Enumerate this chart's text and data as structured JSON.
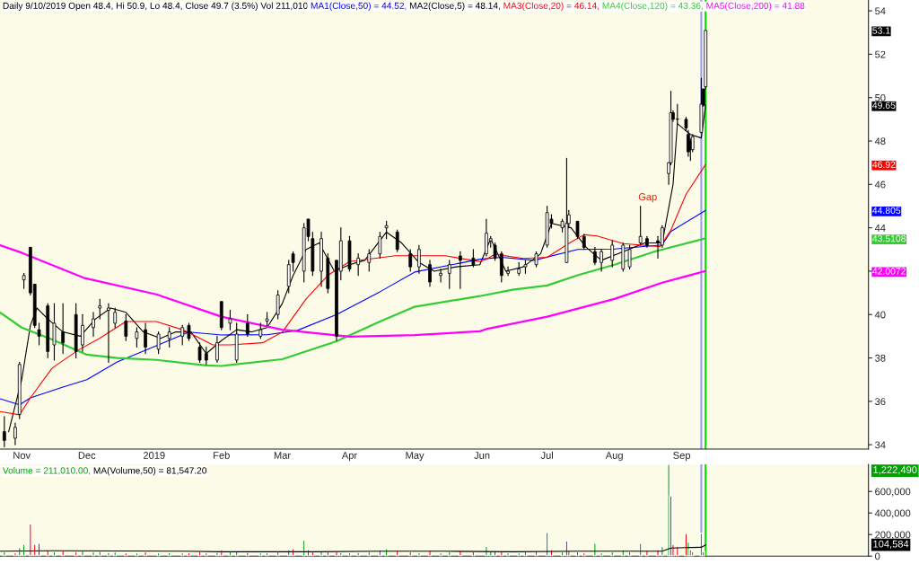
{
  "chart_data": [
    {
      "type": "candlestick",
      "title": "Daily 9/10/2019 Open 48.4, Hi 50.9, Lo 48.4, Close 49.7 (3.5%) Vol 211,010",
      "x": [
        "2018-10-24",
        "2018-10-29",
        "2018-10-31",
        "2018-11-02",
        "2018-11-05",
        "2018-11-07",
        "2018-11-09",
        "2018-11-13",
        "2018-11-16",
        "2018-11-20",
        "2018-11-26",
        "2018-11-29",
        "2018-12-04",
        "2018-12-07",
        "2018-12-11",
        "2018-12-14",
        "2018-12-19",
        "2018-12-24",
        "2018-12-28",
        "2019-01-03",
        "2019-01-08",
        "2019-01-14",
        "2019-01-17",
        "2019-01-22",
        "2019-01-25",
        "2019-01-30",
        "2019-02-01",
        "2019-02-05",
        "2019-02-08",
        "2019-02-13",
        "2019-02-19",
        "2019-02-22",
        "2019-02-27",
        "2019-03-04",
        "2019-03-06",
        "2019-03-11",
        "2019-03-13",
        "2019-03-15",
        "2019-03-19",
        "2019-03-22",
        "2019-03-26",
        "2019-03-28",
        "2019-04-01",
        "2019-04-05",
        "2019-04-10",
        "2019-04-15",
        "2019-04-18",
        "2019-04-23",
        "2019-04-29",
        "2019-05-03",
        "2019-05-08",
        "2019-05-13",
        "2019-05-17",
        "2019-05-22",
        "2019-05-28",
        "2019-06-03",
        "2019-06-05",
        "2019-06-07",
        "2019-06-10",
        "2019-06-13",
        "2019-06-18",
        "2019-06-21",
        "2019-06-26",
        "2019-07-01",
        "2019-07-03",
        "2019-07-08",
        "2019-07-10",
        "2019-07-11",
        "2019-07-15",
        "2019-07-18",
        "2019-07-23",
        "2019-07-26",
        "2019-07-31",
        "2019-08-05",
        "2019-08-08",
        "2019-08-13",
        "2019-08-16",
        "2019-08-21",
        "2019-08-23",
        "2019-08-26",
        "2019-08-27",
        "2019-08-28",
        "2019-08-30",
        "2019-09-03",
        "2019-09-04",
        "2019-09-05",
        "2019-09-06",
        "2019-09-10",
        "2019-09-11",
        "2019-09-12"
      ],
      "ohlc": [
        [
          34.6,
          35.3,
          33.9,
          34.2
        ],
        [
          34.3,
          35.0,
          34.0,
          34.8
        ],
        [
          35.4,
          37.8,
          35.2,
          37.7
        ],
        [
          41.6,
          41.9,
          41.2,
          41.8
        ],
        [
          43.1,
          43.1,
          40.9,
          41.0
        ],
        [
          41.4,
          41.4,
          39.4,
          39.5
        ],
        [
          39.3,
          39.6,
          38.6,
          39.0
        ],
        [
          40.4,
          40.5,
          38.0,
          38.3
        ],
        [
          38.6,
          40.5,
          37.9,
          39.6
        ],
        [
          39.2,
          40.5,
          38.2,
          38.7
        ],
        [
          40.0,
          40.5,
          38.0,
          38.3
        ],
        [
          38.6,
          40.0,
          38.3,
          39.5
        ],
        [
          39.4,
          40.1,
          39.0,
          39.8
        ],
        [
          40.3,
          40.7,
          39.8,
          40.4
        ],
        [
          40.2,
          40.5,
          37.8,
          40.3
        ],
        [
          39.6,
          40.3,
          39.4,
          40.1
        ],
        [
          39.7,
          40.0,
          38.8,
          39.0
        ],
        [
          38.9,
          39.4,
          38.5,
          39.2
        ],
        [
          39.3,
          39.6,
          38.2,
          38.5
        ],
        [
          38.4,
          39.2,
          38.2,
          39.1
        ],
        [
          38.9,
          39.4,
          38.5,
          39.2
        ],
        [
          39.0,
          39.5,
          38.6,
          39.4
        ],
        [
          39.5,
          39.6,
          38.8,
          38.9
        ],
        [
          38.5,
          38.7,
          37.8,
          37.9
        ],
        [
          38.2,
          38.5,
          37.7,
          37.9
        ],
        [
          37.9,
          39.0,
          37.8,
          38.7
        ],
        [
          40.6,
          40.6,
          39.3,
          39.4
        ],
        [
          39.6,
          40.2,
          39.3,
          39.8
        ],
        [
          37.9,
          39.6,
          37.8,
          39.1
        ],
        [
          39.6,
          40.0,
          39.0,
          39.1
        ],
        [
          39.0,
          39.6,
          38.9,
          39.3
        ],
        [
          39.7,
          40.1,
          39.5,
          39.8
        ],
        [
          40.0,
          41.1,
          39.8,
          40.9
        ],
        [
          41.3,
          42.5,
          41.0,
          42.3
        ],
        [
          42.8,
          42.9,
          42.0,
          42.4
        ],
        [
          42.0,
          44.2,
          41.5,
          44.0
        ],
        [
          44.4,
          44.4,
          43.4,
          43.6
        ],
        [
          43.5,
          43.8,
          41.8,
          42.0
        ],
        [
          42.0,
          43.8,
          41.3,
          43.5
        ],
        [
          42.6,
          42.8,
          41.0,
          41.2
        ],
        [
          42.5,
          42.5,
          38.8,
          39.0
        ],
        [
          42.0,
          44.0,
          41.6,
          43.4
        ],
        [
          43.4,
          43.6,
          42.0,
          42.1
        ],
        [
          42.3,
          42.8,
          41.8,
          42.6
        ],
        [
          42.4,
          43.0,
          42.0,
          42.8
        ],
        [
          42.8,
          43.8,
          42.6,
          43.6
        ],
        [
          44.0,
          44.3,
          43.5,
          44.1
        ],
        [
          43.8,
          43.9,
          42.9,
          43.0
        ],
        [
          42.8,
          43.0,
          42.0,
          42.2
        ],
        [
          42.2,
          43.2,
          41.9,
          43.0
        ],
        [
          42.3,
          42.5,
          41.3,
          41.5
        ],
        [
          41.8,
          42.1,
          41.5,
          41.9
        ],
        [
          41.9,
          42.5,
          41.2,
          42.3
        ],
        [
          42.7,
          42.9,
          41.2,
          42.5
        ],
        [
          42.6,
          43.0,
          42.2,
          42.3
        ],
        [
          42.8,
          44.4,
          42.7,
          43.75
        ],
        [
          43.4,
          43.6,
          43.1,
          43.5
        ],
        [
          43.2,
          43.3,
          42.5,
          42.6
        ],
        [
          42.8,
          42.9,
          41.5,
          41.8
        ],
        [
          41.9,
          42.2,
          41.8,
          42.0
        ],
        [
          41.9,
          42.4,
          41.8,
          42.1
        ],
        [
          42.2,
          42.5,
          41.9,
          42.3
        ],
        [
          42.3,
          42.9,
          42.2,
          42.8
        ],
        [
          43.2,
          45.0,
          43.1,
          44.7
        ],
        [
          44.4,
          44.6,
          44.0,
          44.2
        ],
        [
          44.0,
          44.4,
          43.8,
          44.3
        ],
        [
          42.4,
          47.2,
          42.4,
          44.2
        ],
        [
          44.2,
          44.8,
          44.0,
          44.6
        ],
        [
          44.3,
          44.3,
          43.5,
          43.6
        ],
        [
          43.6,
          43.7,
          43.0,
          43.1
        ],
        [
          42.9,
          43.1,
          42.3,
          42.4
        ],
        [
          42.4,
          43.0,
          42.0,
          42.9
        ],
        [
          42.5,
          43.4,
          42.2,
          43.2
        ],
        [
          42.1,
          43.3,
          42.0,
          43.2
        ],
        [
          42.2,
          43.2,
          42.1,
          43.0
        ],
        [
          43.3,
          45.0,
          43.2,
          43.6
        ],
        [
          43.5,
          43.6,
          43.1,
          43.2
        ],
        [
          43.4,
          43.6,
          42.6,
          43.3
        ],
        [
          43.2,
          44.1,
          43.1,
          44.0
        ],
        [
          46.5,
          47.0,
          46.0,
          47.0
        ],
        [
          47.0,
          50.3,
          46.9,
          49.3
        ],
        [
          49.3,
          49.4,
          48.9,
          49.0
        ],
        [
          49.0,
          49.7,
          48.8,
          49.0
        ],
        [
          49.0,
          49.1,
          48.5,
          48.6
        ],
        [
          48.3,
          48.5,
          47.3,
          47.5
        ],
        [
          48.0,
          48.1,
          47.1,
          47.6
        ],
        [
          47.6,
          48.3,
          47.5,
          48.2
        ],
        [
          48.4,
          50.9,
          48.4,
          49.7
        ],
        [
          50.4,
          50.4,
          49.6,
          49.65
        ],
        [
          50.5,
          53.1,
          50.4,
          53.1
        ]
      ],
      "series": [
        {
          "name": "MA1(Close,50) = 44.52,",
          "type": "line",
          "color": "#0000ff",
          "x": [
            "2018-10-22",
            "2018-10-31",
            "2018-11-05",
            "2018-11-20",
            "2018-12-01",
            "2018-12-15",
            "2019-01-02",
            "2019-01-17",
            "2019-02-01",
            "2019-02-22",
            "2019-03-08",
            "2019-03-26",
            "2019-04-15",
            "2019-05-01",
            "2019-05-31",
            "2019-06-10",
            "2019-06-25",
            "2019-07-15",
            "2019-08-01",
            "2019-08-23",
            "2019-08-27",
            "2019-09-12"
          ],
          "values": [
            36.12,
            35.84,
            36.16,
            36.66,
            37.0,
            37.82,
            38.56,
            39.19,
            39.06,
            39.07,
            39.27,
            40.0,
            41.05,
            41.96,
            42.55,
            42.64,
            42.5,
            43.0,
            43.02,
            43.21,
            43.83,
            44.805
          ]
        },
        {
          "name": "MA2(Close,5) = 48.14,",
          "type": "line",
          "color": "#000000",
          "x": [
            "2018-10-26",
            "2018-11-01",
            "2018-11-05",
            "2018-11-08",
            "2018-11-13",
            "2018-11-20",
            "2018-11-28",
            "2018-12-05",
            "2018-12-12",
            "2018-12-19",
            "2018-12-27",
            "2019-01-04",
            "2019-01-11",
            "2019-01-18",
            "2019-01-25",
            "2019-02-01",
            "2019-02-08",
            "2019-02-15",
            "2019-02-22",
            "2019-03-01",
            "2019-03-06",
            "2019-03-12",
            "2019-03-18",
            "2019-03-25",
            "2019-04-01",
            "2019-04-08",
            "2019-04-18",
            "2019-04-25",
            "2019-05-03",
            "2019-05-10",
            "2019-05-20",
            "2019-05-31",
            "2019-06-05",
            "2019-06-12",
            "2019-06-20",
            "2019-06-28",
            "2019-07-03",
            "2019-07-12",
            "2019-07-19",
            "2019-07-26",
            "2019-08-05",
            "2019-08-15",
            "2019-08-23",
            "2019-08-28",
            "2019-08-30",
            "2019-09-05",
            "2019-09-10",
            "2019-09-12"
          ],
          "values": [
            34.6,
            37.0,
            39.5,
            40.3,
            39.8,
            39.2,
            39.0,
            39.8,
            40.3,
            40.1,
            39.2,
            38.9,
            39.2,
            39.2,
            38.2,
            38.8,
            39.3,
            39.2,
            39.4,
            40.5,
            41.8,
            43.0,
            43.3,
            42.0,
            42.3,
            42.5,
            43.8,
            43.3,
            42.4,
            42.0,
            42.2,
            42.3,
            43.5,
            42.0,
            42.2,
            42.8,
            44.2,
            44.0,
            43.1,
            42.5,
            42.9,
            43.3,
            43.3,
            46.0,
            48.8,
            48.3,
            48.14,
            49.65
          ]
        },
        {
          "name": "MA3(Close,20) = 46.14,",
          "type": "line",
          "color": "#ff0000",
          "x": [
            "2018-10-22",
            "2018-10-31",
            "2018-11-05",
            "2018-11-15",
            "2018-11-27",
            "2018-12-07",
            "2018-12-19",
            "2019-01-02",
            "2019-01-15",
            "2019-01-28",
            "2019-02-05",
            "2019-02-20",
            "2019-03-01",
            "2019-03-12",
            "2019-03-22",
            "2019-04-01",
            "2019-04-22",
            "2019-05-15",
            "2019-05-31",
            "2019-06-03",
            "2019-06-07",
            "2019-06-20",
            "2019-07-01",
            "2019-07-12",
            "2019-07-18",
            "2019-07-24",
            "2019-08-05",
            "2019-08-22",
            "2019-08-27",
            "2019-09-03",
            "2019-09-12"
          ],
          "values": [
            35.53,
            35.38,
            36.16,
            37.53,
            38.36,
            38.91,
            39.68,
            39.68,
            39.27,
            38.6,
            38.6,
            38.7,
            39.19,
            40.72,
            41.81,
            42.44,
            42.71,
            42.71,
            42.44,
            42.55,
            42.78,
            42.59,
            42.64,
            43.34,
            43.68,
            43.62,
            43.27,
            43.13,
            43.89,
            45.55,
            46.92
          ]
        },
        {
          "name": "MA4(Close,120) = 43.36,",
          "type": "line",
          "color": "#33cc33",
          "x": [
            "2018-10-22",
            "2018-11-01",
            "2018-11-15",
            "2018-12-01",
            "2018-12-15",
            "2019-01-02",
            "2019-01-25",
            "2019-02-01",
            "2019-03-01",
            "2019-03-26",
            "2019-04-15",
            "2019-05-01",
            "2019-05-31",
            "2019-06-15",
            "2019-07-01",
            "2019-07-15",
            "2019-08-01",
            "2019-08-20",
            "2019-09-12"
          ],
          "values": [
            40.1,
            39.4,
            38.85,
            38.15,
            38.0,
            37.91,
            37.66,
            37.63,
            37.94,
            38.77,
            39.68,
            40.36,
            40.85,
            41.14,
            41.34,
            41.81,
            42.3,
            42.92,
            43.5108
          ]
        },
        {
          "name": "MA5(Close,200) = 41.88",
          "type": "line",
          "color": "#ff00ff",
          "x": [
            "2018-10-22",
            "2018-11-01",
            "2018-11-30",
            "2019-01-02",
            "2019-02-01",
            "2019-03-01",
            "2019-04-01",
            "2019-05-01",
            "2019-05-31",
            "2019-06-03",
            "2019-07-01",
            "2019-08-01",
            "2019-08-23",
            "2019-09-12"
          ],
          "values": [
            43.2,
            42.85,
            41.68,
            40.93,
            39.9,
            39.3,
            38.98,
            39.05,
            39.23,
            39.33,
            39.9,
            40.72,
            41.47,
            42.0072
          ]
        }
      ],
      "annotations": [
        "Gap"
      ],
      "y2lim": [
        33.8,
        54.5
      ],
      "y2ticks": [
        53.1,
        49.65,
        46.92,
        44.805,
        43.5108,
        42.0072
      ],
      "ref_lines": [
        {
          "axis": "x",
          "value": "2019-09-10",
          "color": "#9999ff"
        },
        {
          "axis": "x",
          "value": "2019-09-12",
          "color": "#00dd00"
        }
      ],
      "xlim": [
        "2018-10-22",
        "2019-11-26"
      ],
      "xticks": [
        {
          "value": "2018-11-01",
          "label": "Nov"
        },
        {
          "value": "2018-12-01",
          "label": "Dec"
        },
        {
          "value": "2019-01-01",
          "label": "2019"
        },
        {
          "value": "2019-02-01",
          "label": "Feb"
        },
        {
          "value": "2019-03-01",
          "label": "Mar"
        },
        {
          "value": "2019-04-01",
          "label": "Apr"
        },
        {
          "value": "2019-05-01",
          "label": "May"
        },
        {
          "value": "2019-06-01",
          "label": "Jun"
        },
        {
          "value": "2019-07-01",
          "label": "Jul"
        },
        {
          "value": "2019-08-01",
          "label": "Aug"
        },
        {
          "value": "2019-09-01",
          "label": "Sep"
        }
      ],
      "ylim": [
        33.8,
        54.5
      ],
      "yticks": [
        34,
        36,
        38,
        40,
        {
          "value": 42,
          "label": null
        },
        44,
        46,
        48,
        50,
        52,
        54
      ],
      "grid": false,
      "legend": "top right"
    },
    {
      "type": "bar",
      "x": [
        "2018-10-24",
        "2018-10-29",
        "2018-10-31",
        "2018-11-02",
        "2018-11-05",
        "2018-11-07",
        "2018-11-09",
        "2018-11-13",
        "2018-11-16",
        "2018-11-20",
        "2018-11-26",
        "2018-11-29",
        "2018-12-04",
        "2018-12-07",
        "2018-12-11",
        "2018-12-14",
        "2018-12-19",
        "2018-12-24",
        "2018-12-28",
        "2019-01-03",
        "2019-01-08",
        "2019-01-14",
        "2019-01-17",
        "2019-01-22",
        "2019-01-25",
        "2019-01-30",
        "2019-02-01",
        "2019-02-05",
        "2019-02-08",
        "2019-02-13",
        "2019-02-19",
        "2019-02-22",
        "2019-02-27",
        "2019-03-04",
        "2019-03-06",
        "2019-03-11",
        "2019-03-13",
        "2019-03-15",
        "2019-03-19",
        "2019-03-22",
        "2019-03-26",
        "2019-03-28",
        "2019-04-01",
        "2019-04-05",
        "2019-04-10",
        "2019-04-15",
        "2019-04-18",
        "2019-04-23",
        "2019-04-29",
        "2019-05-03",
        "2019-05-08",
        "2019-05-13",
        "2019-05-17",
        "2019-05-22",
        "2019-05-28",
        "2019-06-03",
        "2019-06-05",
        "2019-06-07",
        "2019-06-10",
        "2019-06-13",
        "2019-06-18",
        "2019-06-21",
        "2019-06-26",
        "2019-07-01",
        "2019-07-03",
        "2019-07-08",
        "2019-07-10",
        "2019-07-11",
        "2019-07-15",
        "2019-07-18",
        "2019-07-23",
        "2019-07-26",
        "2019-07-31",
        "2019-08-05",
        "2019-08-08",
        "2019-08-13",
        "2019-08-16",
        "2019-08-21",
        "2019-08-23",
        "2019-08-26",
        "2019-08-27",
        "2019-08-28",
        "2019-08-30",
        "2019-09-03",
        "2019-09-04",
        "2019-09-05",
        "2019-09-06",
        "2019-09-10",
        "2019-09-11"
      ],
      "series": [
        {
          "name": "Volume = 211,010.00,",
          "color": "#00a000",
          "values": [
            40000,
            30000,
            80000,
            110000,
            300000,
            110000,
            120000,
            60000,
            40000,
            50000,
            40000,
            50000,
            40000,
            45000,
            35000,
            40000,
            30000,
            30000,
            40000,
            30000,
            35000,
            30000,
            30000,
            40000,
            30000,
            35000,
            60000,
            50000,
            40000,
            35000,
            30000,
            30000,
            40000,
            60000,
            70000,
            150000,
            60000,
            40000,
            50000,
            40000,
            40000,
            35000,
            30000,
            35000,
            40000,
            60000,
            70000,
            50000,
            40000,
            35000,
            50000,
            30000,
            40000,
            50000,
            40000,
            90000,
            50000,
            40000,
            40000,
            30000,
            30000,
            40000,
            50000,
            220000,
            60000,
            40000,
            140000,
            50000,
            40000,
            30000,
            120000,
            30000,
            40000,
            60000,
            40000,
            120000,
            50000,
            60000,
            90000,
            852000,
            560000,
            110000,
            90000,
            210000,
            130000,
            60000,
            40000,
            211010,
            40000
          ],
          "colors": [
            "#00a000",
            "#ff0000",
            "#00a000",
            "#00a000",
            "#ff0000",
            "#ff0000",
            "#ff0000",
            "#ff0000",
            "#00a000",
            "#ff0000",
            "#ff0000",
            "#00a000",
            "#00a000",
            "#00a000",
            "#00a000",
            "#00a000",
            "#ff0000",
            "#00a000",
            "#ff0000",
            "#00a000",
            "#00a000",
            "#00a000",
            "#ff0000",
            "#ff0000",
            "#ff0000",
            "#00a000",
            "#ff0000",
            "#00a000",
            "#00a000",
            "#ff0000",
            "#00a000",
            "#00a000",
            "#00a000",
            "#00a000",
            "#ff0000",
            "#00a000",
            "#ff0000",
            "#ff0000",
            "#00a000",
            "#ff0000",
            "#ff0000",
            "#00a000",
            "#ff0000",
            "#00a000",
            "#00a000",
            "#00a000",
            "#00a000",
            "#ff0000",
            "#ff0000",
            "#00a000",
            "#ff0000",
            "#00a000",
            "#00a000",
            "#ff0000",
            "#ff0000",
            "#00a000",
            "#00a000",
            "#ff0000",
            "#ff0000",
            "#00a000",
            "#00a000",
            "#00a000",
            "#00a000",
            "#00a000",
            "#ff0000",
            "#00a000",
            "#ff0000",
            "#00a000",
            "#ff0000",
            "#ff0000",
            "#00a000",
            "#00a000",
            "#00a000",
            "#00a000",
            "#00a000",
            "#00a000",
            "#ff0000",
            "#ff0000",
            "#00a000",
            "#00a000",
            "#00a000",
            "#ff0000",
            "#ff0000",
            "#ff0000",
            "#00a000",
            "#ff0000",
            "#00a000",
            "#00a000",
            "#ff0000"
          ]
        },
        {
          "name": "MA(Volume,50) = 81,547.20",
          "type": "line",
          "color": "#000000",
          "x": [
            "2018-10-22",
            "2018-11-15",
            "2019-01-15",
            "2019-02-01",
            "2019-03-15",
            "2019-04-15",
            "2019-05-15",
            "2019-06-15",
            "2019-07-15",
            "2019-08-15",
            "2019-08-23",
            "2019-08-27",
            "2019-09-05",
            "2019-09-10",
            "2019-09-12"
          ],
          "values": [
            45000,
            50000,
            45000,
            40000,
            40000,
            45000,
            45000,
            40000,
            45000,
            45000,
            45000,
            75000,
            80000,
            81547.2,
            104584
          ]
        }
      ],
      "annotations": [
        "1,222,490",
        "104,584"
      ],
      "ref_lines": [
        {
          "axis": "x",
          "value": "2019-09-10",
          "color": "#9999ff"
        },
        {
          "axis": "x",
          "value": "2019-09-12",
          "color": "#00dd00"
        }
      ],
      "xlim": [
        "2018-10-22",
        "2019-11-26"
      ],
      "ylim": [
        0,
        852000
      ],
      "yticks": [
        {
          "value": 0,
          "label": "0"
        },
        {
          "value": 200000,
          "label": "200,000"
        },
        {
          "value": 400000,
          "label": "400,000"
        },
        {
          "value": 600000,
          "label": "600,000"
        }
      ],
      "tick_labels": "y",
      "grid": false,
      "legend": "top left"
    }
  ]
}
